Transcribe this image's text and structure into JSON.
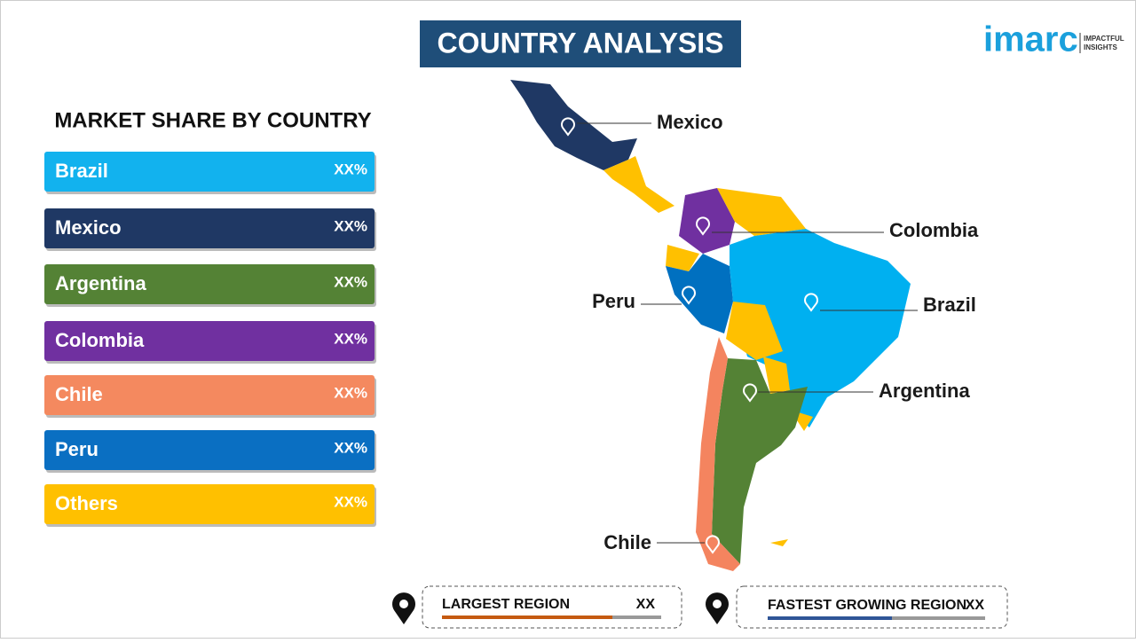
{
  "header": {
    "title": "COUNTRY ANALYSIS",
    "logo": "imarc",
    "logo_tagline": [
      "IMPACTFUL",
      "INSIGHTS"
    ]
  },
  "market_share": {
    "title": "MARKET SHARE BY COUNTRY",
    "rows": [
      {
        "country": "Brazil",
        "value": "XX%",
        "color": "#12b2ee"
      },
      {
        "country": "Mexico",
        "value": "XX%",
        "color": "#1f3864"
      },
      {
        "country": "Argentina",
        "value": "XX%",
        "color": "#548235"
      },
      {
        "country": "Colombia",
        "value": "XX%",
        "color": "#7030a0"
      },
      {
        "country": "Chile",
        "value": "XX%",
        "color": "#f4895f"
      },
      {
        "country": "Peru",
        "value": "XX%",
        "color": "#0a6fc2"
      },
      {
        "country": "Others",
        "value": "XX%",
        "color": "#ffc000"
      }
    ]
  },
  "map": {
    "labels": [
      "Mexico",
      "Colombia",
      "Peru",
      "Brazil",
      "Argentina",
      "Chile"
    ]
  },
  "footer": {
    "largest_region": {
      "label": "LARGEST REGION",
      "value": "XX"
    },
    "fastest_growing_region": {
      "label": "FASTEST GROWING REGION",
      "value": "XX"
    }
  }
}
